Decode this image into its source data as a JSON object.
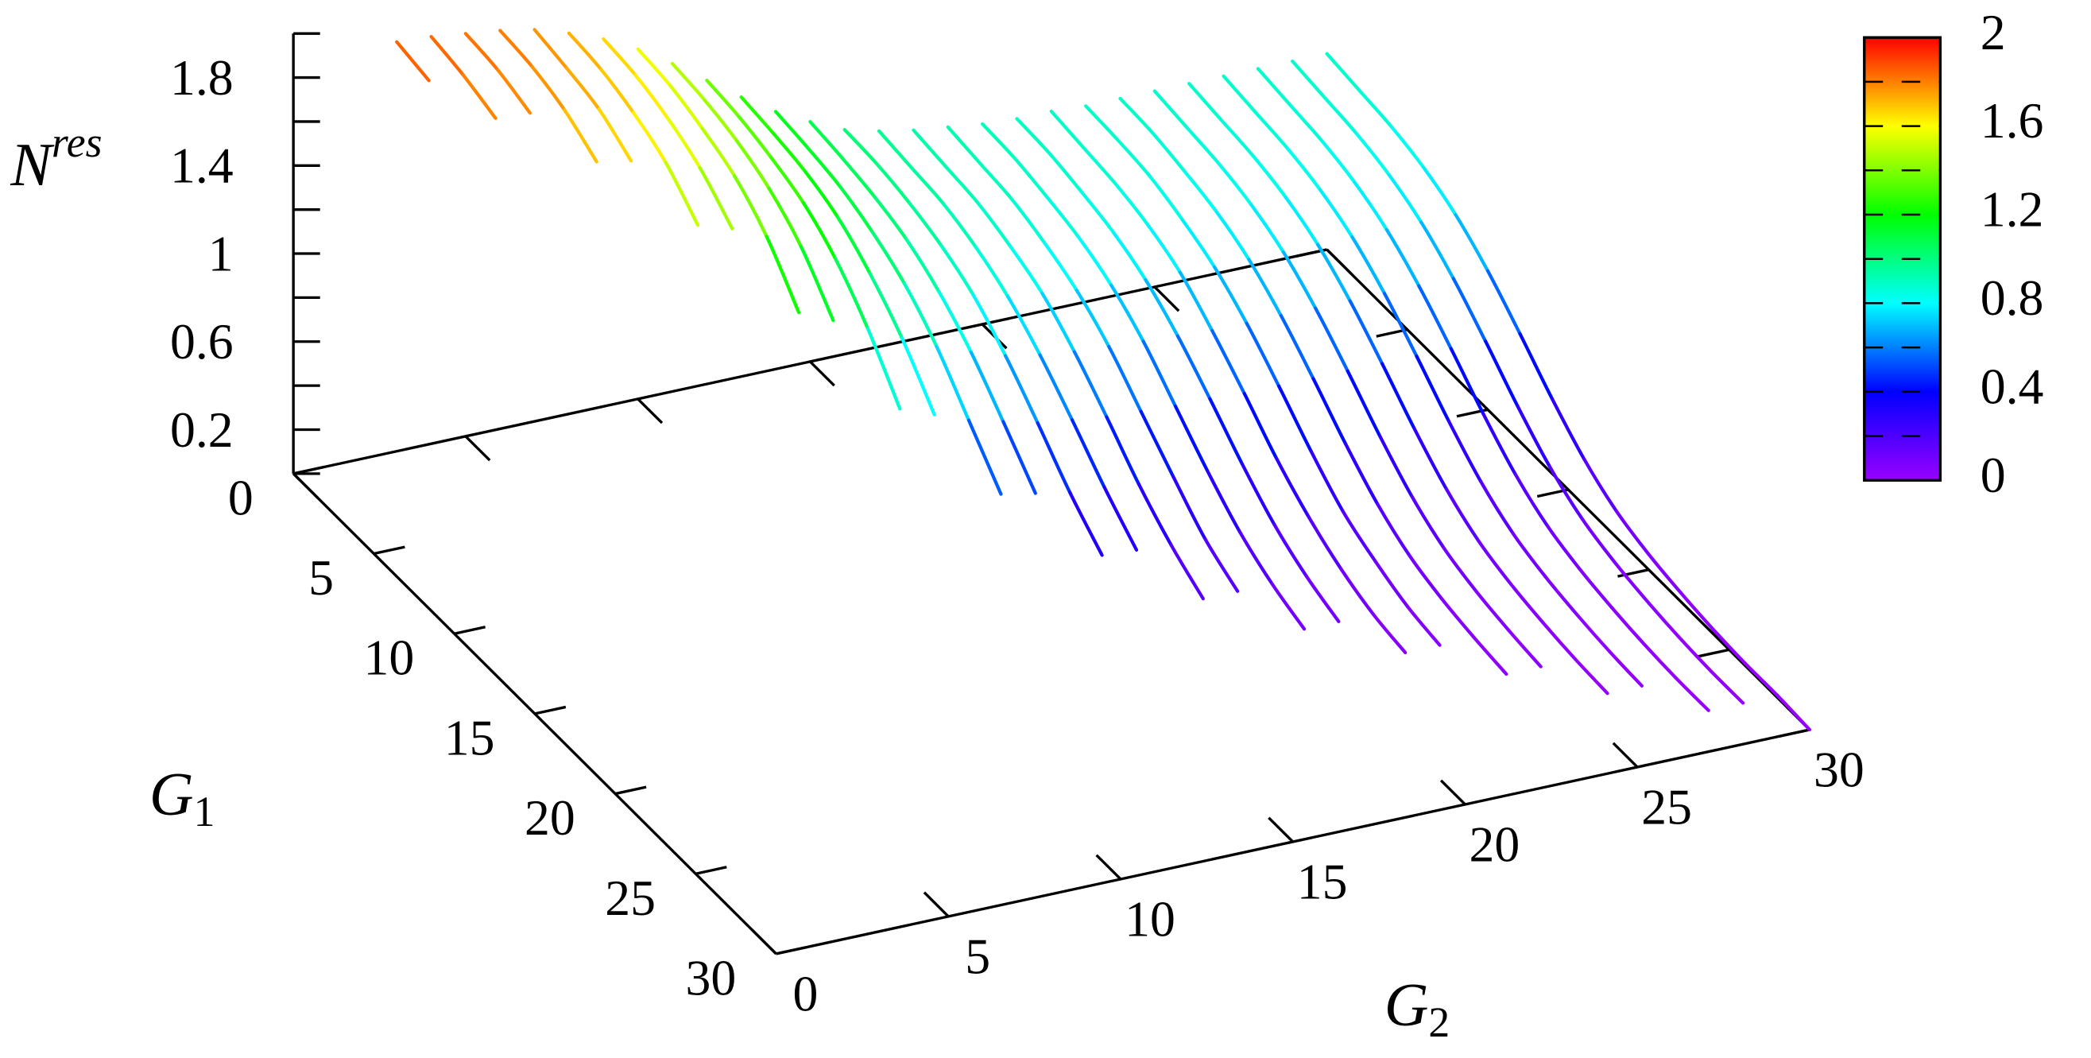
{
  "chart_data": {
    "type": "line3d",
    "xlabel": {
      "base": "G",
      "sub": "1"
    },
    "ylabel": {
      "base": "G",
      "sub": "2"
    },
    "zlabel": {
      "base": "N",
      "sup": "res"
    },
    "xlim": [
      0,
      30
    ],
    "xticks": [
      0,
      5,
      10,
      15,
      20,
      25,
      30
    ],
    "ylim": [
      0,
      30
    ],
    "yticks": [
      0,
      5,
      10,
      15,
      20,
      25,
      30
    ],
    "zlim": [
      0,
      2
    ],
    "zticks": [
      0.2,
      0.6,
      1,
      1.4,
      1.8
    ],
    "zminorticks": [
      0,
      0.4,
      0.8,
      1.2,
      1.6,
      2
    ],
    "cblim": [
      0,
      2
    ],
    "cbticks": [
      0,
      0.4,
      0.8,
      1.2,
      1.6,
      2
    ],
    "cbminorticks": [
      0.2,
      0.6,
      1,
      1.4,
      1.8
    ],
    "palette": [
      "#9900ff",
      "#0000ff",
      "#00ffff",
      "#00ff00",
      "#ffff00",
      "#ff0000"
    ],
    "x": [
      0,
      2,
      4,
      6,
      8,
      10,
      12,
      14,
      16,
      18,
      20,
      22,
      24,
      26,
      28,
      30
    ],
    "series": [
      {
        "y": 3,
        "values": [
          1.86,
          1.83,
          null,
          null,
          null,
          null,
          null,
          null,
          null,
          null,
          null,
          null,
          null,
          null,
          null,
          null
        ]
      },
      {
        "y": 4,
        "values": [
          1.85,
          1.82,
          1.77,
          null,
          null,
          null,
          null,
          null,
          null,
          null,
          null,
          null,
          null,
          null,
          null,
          null
        ]
      },
      {
        "y": 5,
        "values": [
          1.83,
          1.81,
          1.76,
          null,
          null,
          null,
          null,
          null,
          null,
          null,
          null,
          null,
          null,
          null,
          null,
          null
        ]
      },
      {
        "y": 6,
        "values": [
          1.81,
          1.79,
          1.74,
          1.65,
          null,
          null,
          null,
          null,
          null,
          null,
          null,
          null,
          null,
          null,
          null,
          null
        ]
      },
      {
        "y": 7,
        "values": [
          1.78,
          1.75,
          1.71,
          1.62,
          null,
          null,
          null,
          null,
          null,
          null,
          null,
          null,
          null,
          null,
          null,
          null
        ]
      },
      {
        "y": 8,
        "values": [
          1.73,
          1.71,
          1.66,
          1.58,
          1.44,
          null,
          null,
          null,
          null,
          null,
          null,
          null,
          null,
          null,
          null,
          null
        ]
      },
      {
        "y": 9,
        "values": [
          1.67,
          1.65,
          1.6,
          1.52,
          1.39,
          null,
          null,
          null,
          null,
          null,
          null,
          null,
          null,
          null,
          null,
          null
        ]
      },
      {
        "y": 10,
        "values": [
          1.59,
          1.57,
          1.52,
          1.45,
          1.32,
          1.12,
          null,
          null,
          null,
          null,
          null,
          null,
          null,
          null,
          null,
          null
        ]
      },
      {
        "y": 11,
        "values": [
          1.49,
          1.47,
          1.43,
          1.36,
          1.24,
          1.05,
          null,
          null,
          null,
          null,
          null,
          null,
          null,
          null,
          null,
          null
        ]
      },
      {
        "y": 12,
        "values": [
          1.38,
          1.36,
          1.32,
          1.26,
          1.15,
          0.98,
          0.76,
          null,
          null,
          null,
          null,
          null,
          null,
          null,
          null,
          null
        ]
      },
      {
        "y": 13,
        "values": [
          1.27,
          1.25,
          1.22,
          1.16,
          1.05,
          0.9,
          0.7,
          null,
          null,
          null,
          null,
          null,
          null,
          null,
          null,
          null
        ]
      },
      {
        "y": 14,
        "values": [
          1.17,
          1.15,
          1.12,
          1.06,
          0.97,
          0.83,
          0.64,
          0.45,
          null,
          null,
          null,
          null,
          null,
          null,
          null,
          null
        ]
      },
      {
        "y": 15,
        "values": [
          1.09,
          1.07,
          1.04,
          0.99,
          0.9,
          0.77,
          0.6,
          0.42,
          null,
          null,
          null,
          null,
          null,
          null,
          null,
          null
        ]
      },
      {
        "y": 16,
        "values": [
          1.02,
          1.01,
          0.98,
          0.93,
          0.85,
          0.72,
          0.56,
          0.39,
          0.25,
          null,
          null,
          null,
          null,
          null,
          null,
          null
        ]
      },
      {
        "y": 17,
        "values": [
          0.98,
          0.96,
          0.94,
          0.89,
          0.81,
          0.69,
          0.54,
          0.38,
          0.24,
          null,
          null,
          null,
          null,
          null,
          null,
          null
        ]
      },
      {
        "y": 18,
        "values": [
          0.95,
          0.93,
          0.91,
          0.86,
          0.79,
          0.67,
          0.52,
          0.36,
          0.23,
          0.13,
          null,
          null,
          null,
          null,
          null,
          null
        ]
      },
      {
        "y": 19,
        "values": [
          0.93,
          0.91,
          0.89,
          0.84,
          0.77,
          0.66,
          0.51,
          0.36,
          0.22,
          0.13,
          null,
          null,
          null,
          null,
          null,
          null
        ]
      },
      {
        "y": 20,
        "values": [
          0.91,
          0.9,
          0.87,
          0.83,
          0.76,
          0.65,
          0.5,
          0.35,
          0.22,
          0.13,
          0.07,
          null,
          null,
          null,
          null,
          null
        ]
      },
      {
        "y": 21,
        "values": [
          0.9,
          0.89,
          0.86,
          0.82,
          0.75,
          0.64,
          0.5,
          0.35,
          0.22,
          0.13,
          0.07,
          null,
          null,
          null,
          null,
          null
        ]
      },
      {
        "y": 22,
        "values": [
          0.9,
          0.88,
          0.86,
          0.82,
          0.75,
          0.63,
          0.49,
          0.34,
          0.22,
          0.13,
          0.07,
          0.04,
          null,
          null,
          null,
          null
        ]
      },
      {
        "y": 23,
        "values": [
          0.89,
          0.88,
          0.86,
          0.81,
          0.74,
          0.63,
          0.49,
          0.34,
          0.21,
          0.13,
          0.07,
          0.04,
          null,
          null,
          null,
          null
        ]
      },
      {
        "y": 24,
        "values": [
          0.89,
          0.88,
          0.85,
          0.81,
          0.74,
          0.63,
          0.49,
          0.34,
          0.21,
          0.12,
          0.07,
          0.04,
          0.02,
          null,
          null,
          null
        ]
      },
      {
        "y": 25,
        "values": [
          0.89,
          0.87,
          0.85,
          0.81,
          0.74,
          0.63,
          0.49,
          0.34,
          0.21,
          0.12,
          0.07,
          0.04,
          0.02,
          null,
          null,
          null
        ]
      },
      {
        "y": 26,
        "values": [
          0.89,
          0.87,
          0.85,
          0.81,
          0.74,
          0.63,
          0.49,
          0.34,
          0.21,
          0.12,
          0.07,
          0.04,
          0.02,
          0.01,
          null,
          null
        ]
      },
      {
        "y": 27,
        "values": [
          0.89,
          0.87,
          0.85,
          0.81,
          0.74,
          0.63,
          0.49,
          0.34,
          0.21,
          0.12,
          0.07,
          0.04,
          0.02,
          0.01,
          null,
          null
        ]
      },
      {
        "y": 28,
        "values": [
          0.89,
          0.87,
          0.85,
          0.81,
          0.74,
          0.63,
          0.49,
          0.34,
          0.21,
          0.12,
          0.07,
          0.04,
          0.02,
          0.01,
          0.01,
          null
        ]
      },
      {
        "y": 29,
        "values": [
          0.89,
          0.87,
          0.85,
          0.81,
          0.74,
          0.63,
          0.49,
          0.34,
          0.21,
          0.12,
          0.07,
          0.04,
          0.02,
          0.01,
          0.01,
          null
        ]
      },
      {
        "y": 30,
        "values": [
          0.89,
          0.87,
          0.85,
          0.81,
          0.74,
          0.63,
          0.49,
          0.34,
          0.21,
          0.12,
          0.07,
          0.04,
          0.02,
          0.01,
          0.01,
          0
        ]
      }
    ]
  }
}
